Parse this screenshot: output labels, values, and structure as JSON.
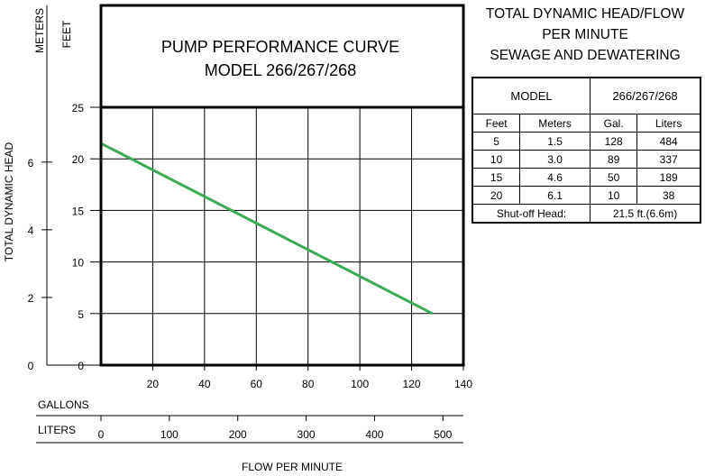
{
  "page": {
    "header": {
      "line1": "TOTAL DYNAMIC HEAD/FLOW",
      "line2": "PER MINUTE",
      "line3": "SEWAGE AND DEWATERING"
    },
    "table": {
      "model_label": "MODEL",
      "model_value": "266/267/268",
      "columns": [
        "Feet",
        "Meters",
        "Gal.",
        "Liters"
      ],
      "rows": [
        [
          "5",
          "1.5",
          "128",
          "484"
        ],
        [
          "10",
          "3.0",
          "89",
          "337"
        ],
        [
          "15",
          "4.6",
          "50",
          "189"
        ],
        [
          "20",
          "6.1",
          "10",
          "38"
        ]
      ],
      "shutoff_label": "Shut-off Head:",
      "shutoff_value": "21.5 ft.(6.6m)"
    }
  },
  "chart_data": {
    "type": "line",
    "title": "PUMP PERFORMANCE CURVE",
    "subtitle": "MODEL 266/267/268",
    "ylabel": "TOTAL DYNAMIC HEAD",
    "xlabel": "FLOW PER MINUTE",
    "y_units_left": "METERS",
    "y_units_right": "FEET",
    "x_units_gallons": "GALLONS",
    "x_units_liters": "LITERS",
    "xlim": [
      0,
      140
    ],
    "ylim": [
      0,
      25
    ],
    "x_ticks": [
      20,
      40,
      60,
      80,
      100,
      120,
      140
    ],
    "y_ticks_feet": [
      0,
      5,
      10,
      15,
      20,
      25
    ],
    "y_ticks_meters": [
      2,
      4,
      6
    ],
    "x_ticks_liters": [
      0,
      100,
      200,
      300,
      400,
      500
    ],
    "grid": true,
    "line_color": "#3aaa55",
    "series": [
      {
        "x": [
          0,
          128
        ],
        "y": [
          21.5,
          5
        ]
      }
    ]
  }
}
